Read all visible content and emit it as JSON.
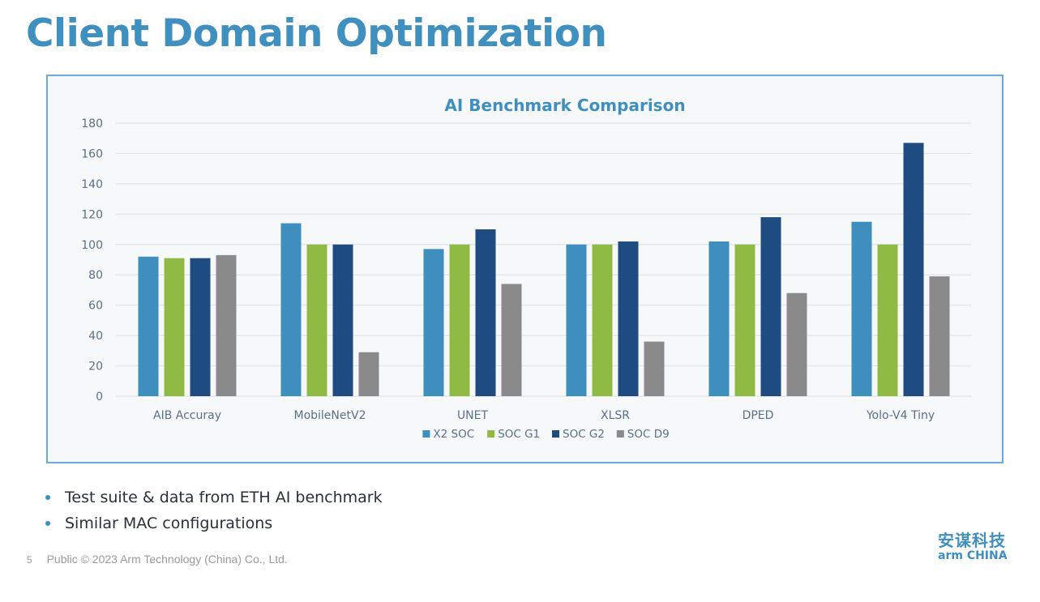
{
  "slide": {
    "title": "Client Domain Optimization",
    "bullets": [
      "Test suite & data from ETH AI benchmark",
      "Similar MAC configurations"
    ],
    "page_number": "5",
    "footer": "Public © 2023 Arm Technology (China) Co., Ltd.",
    "logo": {
      "chinese": "安谋科技",
      "english": "arm CHINA"
    }
  },
  "chart_data": {
    "type": "bar",
    "title": "AI Benchmark Comparison",
    "xlabel": "",
    "ylabel": "",
    "ylim": [
      0,
      180
    ],
    "yticks": [
      0,
      20,
      40,
      60,
      80,
      100,
      120,
      140,
      160,
      180
    ],
    "grid": true,
    "legend_position": "bottom",
    "categories": [
      "AIB Accuray",
      "MobileNetV2",
      "UNET",
      "XLSR",
      "DPED",
      "Yolo-V4 Tiny"
    ],
    "series": [
      {
        "name": "X2 SOC",
        "color": "#3e8fbd",
        "values": [
          92,
          114,
          97,
          100,
          102,
          115
        ]
      },
      {
        "name": "SOC G1",
        "color": "#8fbb45",
        "values": [
          91,
          100,
          100,
          100,
          100,
          100
        ]
      },
      {
        "name": "SOC G2",
        "color": "#1f4c80",
        "values": [
          91,
          100,
          110,
          102,
          118,
          167
        ]
      },
      {
        "name": "SOC D9",
        "color": "#8a8a8a",
        "values": [
          93,
          29,
          74,
          36,
          68,
          79
        ]
      }
    ]
  }
}
